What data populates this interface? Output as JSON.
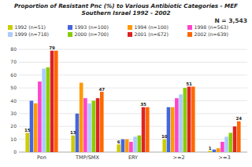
{
  "chart_data": {
    "type": "bar",
    "title": "Proportion of Resistant Pnc (%) to Various Antibiotic Categories - MEF",
    "subtitle": "Southern Israel 1992 - 2002",
    "annotations": [
      "N = 3,543"
    ],
    "categories": [
      "Pen",
      "TMP/SMX",
      "ERY",
      ">=2",
      ">=3"
    ],
    "series": [
      {
        "name": "1992 (n=51)",
        "color": "#cccc00",
        "values": [
          15,
          13,
          6,
          10,
          1
        ],
        "value_labels": [
          "15",
          "13",
          "6",
          "10",
          "1"
        ]
      },
      {
        "name": "1993 (n=100)",
        "color": "#4466dd",
        "values": [
          40,
          30,
          10,
          35,
          2
        ]
      },
      {
        "name": "1994 (n=100)",
        "color": "#ff9900",
        "values": [
          38,
          54,
          10,
          35,
          3
        ]
      },
      {
        "name": "1998 (n=563)",
        "color": "#ff44cc",
        "values": [
          55,
          42,
          8,
          42,
          8
        ]
      },
      {
        "name": "1999 (n=718)",
        "color": "#aaccff",
        "values": [
          65,
          38,
          12,
          45,
          12
        ]
      },
      {
        "name": "2000 (n=700)",
        "color": "#88cc00",
        "values": [
          66,
          40,
          13,
          50,
          15
        ]
      },
      {
        "name": "2001 (n=672)",
        "color": "#dd2222",
        "values": [
          79,
          42,
          35,
          51,
          20
        ],
        "value_labels": [
          "79",
          null,
          "35",
          "51",
          null
        ]
      },
      {
        "name": "2002 (n=639)",
        "color": "#ff6600",
        "values": [
          79,
          47,
          35,
          51,
          24
        ],
        "value_labels": [
          null,
          "47",
          null,
          null,
          "24"
        ]
      }
    ],
    "ylim": [
      0,
      80
    ],
    "yticks": [
      0,
      10,
      20,
      30,
      40,
      50,
      60,
      70,
      80
    ],
    "grid": true,
    "legend": "top"
  }
}
